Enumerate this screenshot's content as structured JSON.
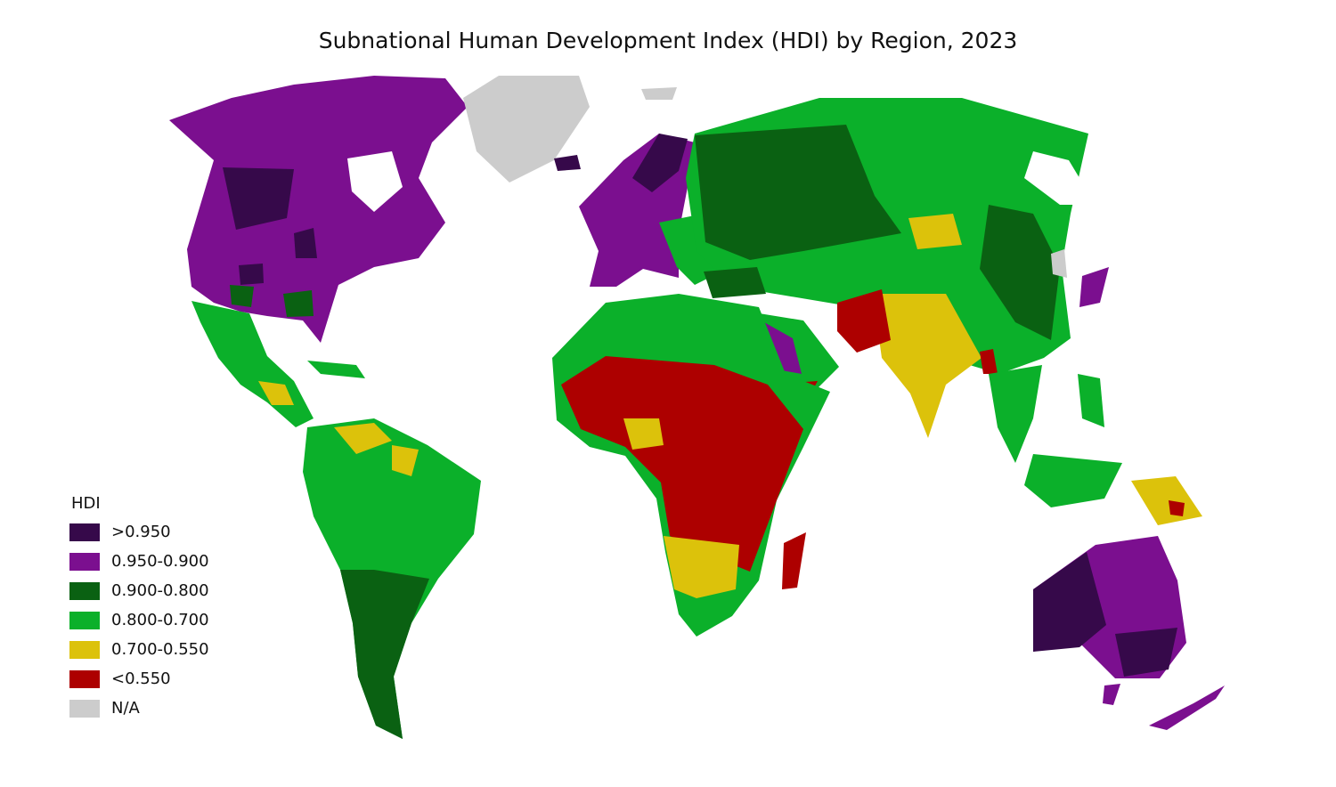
{
  "title": "Subnational Human Development Index (HDI) by Region, 2023",
  "legend": {
    "title": "HDI",
    "items": [
      {
        "label": ">0.950",
        "color": "#36094a"
      },
      {
        "label": "0.950-0.900",
        "color": "#7b0f8f"
      },
      {
        "label": "0.900-0.800",
        "color": "#0a6112"
      },
      {
        "label": "0.800-0.700",
        "color": "#0bb02a"
      },
      {
        "label": "0.700-0.550",
        "color": "#dcc20b"
      },
      {
        "label": "<0.550",
        "color": "#ad0000"
      },
      {
        "label": "N/A",
        "color": "#cccccc"
      }
    ]
  }
}
